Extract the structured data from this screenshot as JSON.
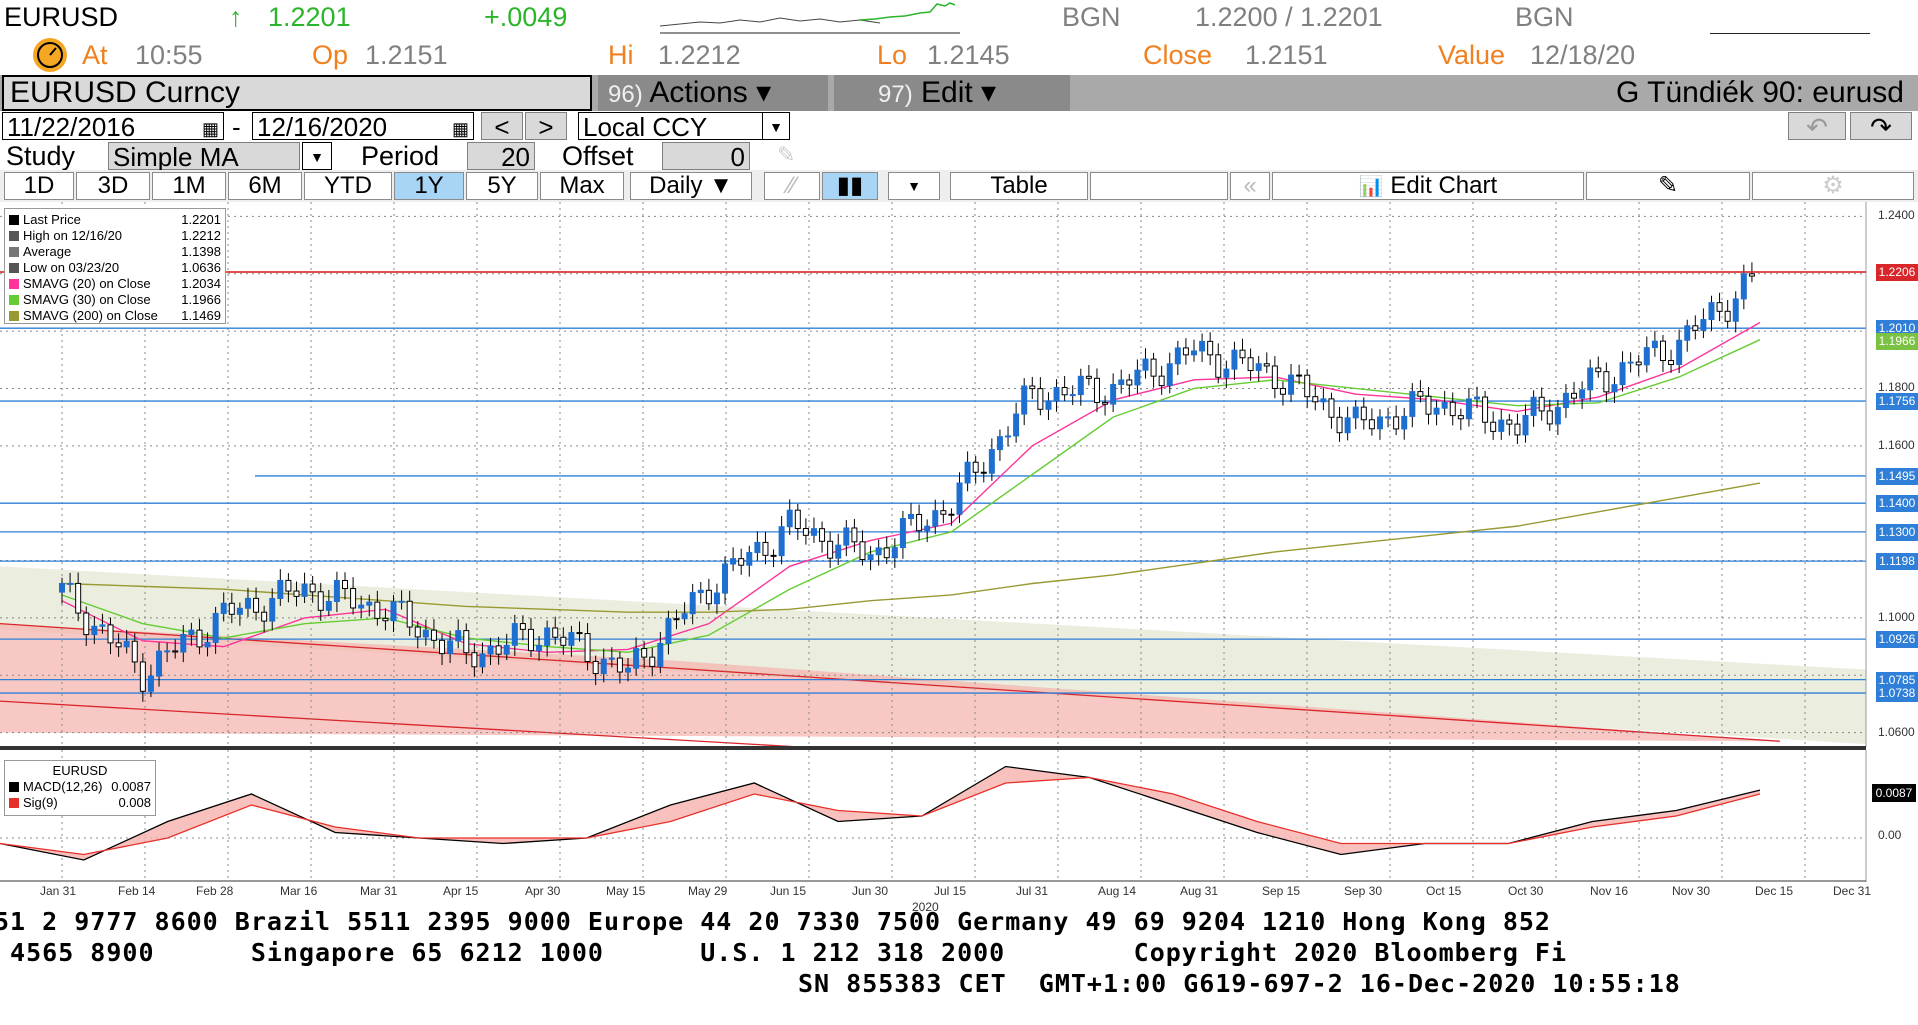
{
  "quote": {
    "ticker": "EURUSD",
    "arrow": "↑",
    "last": "1.2201",
    "change": "+.0049",
    "source1": "BGN",
    "bid_ask": "1.2200 / 1.2201",
    "source2": "BGN",
    "at_label": "At",
    "at_value": "10:55",
    "op_label": "Op",
    "op_value": "1.2151",
    "hi_label": "Hi",
    "hi_value": "1.2212",
    "lo_label": "Lo",
    "lo_value": "1.2145",
    "close_label": "Close",
    "close_value": "1.2151",
    "value_label": "Value",
    "value_value": "12/18/20"
  },
  "titlebar": {
    "security": "EURUSD Curncy",
    "actions_num": "96)",
    "actions_label": "Actions ▾",
    "edit_num": "97)",
    "edit_label": "Edit ▾",
    "chart_name": "G Tündiék 90: eurusd"
  },
  "controls": {
    "start_date": "11/22/2016",
    "dash": "-",
    "end_date": "12/16/2020",
    "prev": "<",
    "next": ">",
    "currency": "Local CCY",
    "study_label": "Study",
    "study_value": "Simple MA",
    "period_label": "Period",
    "period_value": "20",
    "offset_label": "Offset",
    "offset_value": "0"
  },
  "ranges": [
    "1D",
    "3D",
    "1M",
    "6M",
    "YTD",
    "1Y",
    "5Y",
    "Max"
  ],
  "selected_range": "1Y",
  "toolbar": {
    "frequency": "Daily ▼",
    "table": "Table",
    "rewind": "«",
    "edit_chart": "Edit Chart"
  },
  "legend": [
    {
      "label": "Last Price",
      "value": "1.2201",
      "color": "#000000"
    },
    {
      "label": "High on 12/16/20",
      "value": "1.2212",
      "color": "#555555"
    },
    {
      "label": "Average",
      "value": "1.1398",
      "color": "#777777"
    },
    {
      "label": "Low on 03/23/20",
      "value": "1.0636",
      "color": "#555555"
    },
    {
      "label": "SMAVG (20)  on Close",
      "value": "1.2034",
      "color": "#ff3399"
    },
    {
      "label": "SMAVG (30)  on Close",
      "value": "1.1966",
      "color": "#66cc33"
    },
    {
      "label": "SMAVG (200)  on Close",
      "value": "1.1469",
      "color": "#999933"
    }
  ],
  "macd_legend": {
    "title": "EURUSD",
    "rows": [
      {
        "label": "MACD(12,26)",
        "value": "0.0087",
        "color": "#000000"
      },
      {
        "label": "Sig(9)",
        "value": "0.008",
        "color": "#e8302a"
      }
    ]
  },
  "price_axis": {
    "ticks": [
      "1.2400",
      "1.1800",
      "1.1600",
      "1.1000",
      "1.0600"
    ],
    "levels": [
      {
        "label": "1.2206",
        "color": "#d9262b"
      },
      {
        "label": "1.2010",
        "color": "#2f7fd8"
      },
      {
        "label": "1.1966",
        "color": "#7bc142"
      },
      {
        "label": "1.1756",
        "color": "#2f7fd8"
      },
      {
        "label": "1.1495",
        "color": "#2f7fd8"
      },
      {
        "label": "1.1400",
        "color": "#2f7fd8"
      },
      {
        "label": "1.1300",
        "color": "#2f7fd8"
      },
      {
        "label": "1.1198",
        "color": "#2f7fd8"
      },
      {
        "label": "1.0926",
        "color": "#2f7fd8"
      },
      {
        "label": "1.0785",
        "color": "#2f7fd8"
      },
      {
        "label": "1.0738",
        "color": "#2f7fd8"
      }
    ]
  },
  "macd_axis": {
    "ticks": [
      "0.00"
    ],
    "last": "0.0087"
  },
  "x_axis": {
    "labels": [
      "Jan 31",
      "Feb 14",
      "Feb 28",
      "Mar 16",
      "Mar 31",
      "Apr 15",
      "Apr 30",
      "May 15",
      "May 29",
      "Jun 15",
      "Jun 30",
      "Jul 15",
      "Jul 31",
      "Aug 14",
      "Aug 31",
      "Sep 15",
      "Sep 30",
      "Oct 15",
      "Oct 30",
      "Nov 16",
      "Nov 30",
      "Dec 15",
      "Dec 31"
    ],
    "year": "2020"
  },
  "footer": {
    "line1": "51 2 9777 8600 Brazil 5511 2395 9000 Europe 44 20 7330 7500 Germany 49 69 9204 1210 Hong Kong 852",
    "line2": " 4565 8900      Singapore 65 6212 1000      U.S. 1 212 318 2000        Copyright 2020 Bloomberg Fi",
    "line3": "SN 855383 CET  GMT+1:00 G619-697-2 16-Dec-2020 10:55:18"
  },
  "chart_data": {
    "type": "line",
    "title": "EURUSD Curncy",
    "x": [
      "Jan 31",
      "Feb 14",
      "Feb 28",
      "Mar 16",
      "Mar 31",
      "Apr 15",
      "Apr 30",
      "May 15",
      "May 29",
      "Jun 15",
      "Jun 30",
      "Jul 15",
      "Jul 31",
      "Aug 14",
      "Aug 31",
      "Sep 15",
      "Sep 30",
      "Oct 15",
      "Oct 30",
      "Nov 16",
      "Nov 30",
      "Dec 15"
    ],
    "series": [
      {
        "name": "Last Price",
        "values": [
          1.109,
          1.081,
          1.101,
          1.11,
          1.103,
          1.087,
          1.095,
          1.081,
          1.111,
          1.132,
          1.122,
          1.14,
          1.178,
          1.18,
          1.193,
          1.185,
          1.167,
          1.175,
          1.167,
          1.183,
          1.196,
          1.22
        ]
      },
      {
        "name": "SMAVG (20)  on Close",
        "values": [
          1.106,
          1.092,
          1.09,
          1.1,
          1.103,
          1.091,
          1.088,
          1.089,
          1.098,
          1.118,
          1.127,
          1.133,
          1.16,
          1.176,
          1.183,
          1.184,
          1.178,
          1.176,
          1.172,
          1.177,
          1.187,
          1.203
        ]
      },
      {
        "name": "SMAVG (30)  on Close",
        "values": [
          1.108,
          1.098,
          1.093,
          1.098,
          1.1,
          1.093,
          1.09,
          1.088,
          1.094,
          1.11,
          1.123,
          1.13,
          1.15,
          1.17,
          1.18,
          1.183,
          1.18,
          1.177,
          1.174,
          1.175,
          1.184,
          1.197
        ]
      },
      {
        "name": "SMAVG (200)  on Close",
        "values": [
          1.112,
          1.111,
          1.11,
          1.108,
          1.106,
          1.104,
          1.103,
          1.102,
          1.102,
          1.103,
          1.106,
          1.108,
          1.112,
          1.115,
          1.119,
          1.123,
          1.126,
          1.129,
          1.132,
          1.137,
          1.142,
          1.147
        ]
      }
    ],
    "macd": [
      -0.001,
      -0.004,
      0.003,
      0.008,
      0.001,
      0.0,
      -0.001,
      0.0,
      0.006,
      0.01,
      0.003,
      0.004,
      0.013,
      0.011,
      0.006,
      0.001,
      -0.003,
      -0.001,
      -0.001,
      0.003,
      0.005,
      0.0087
    ],
    "signal": [
      -0.001,
      -0.003,
      0.0,
      0.006,
      0.002,
      0.0,
      0.0,
      0.0,
      0.003,
      0.008,
      0.005,
      0.004,
      0.01,
      0.011,
      0.008,
      0.003,
      -0.001,
      -0.001,
      -0.001,
      0.002,
      0.004,
      0.008
    ],
    "ylim": [
      1.055,
      1.245
    ],
    "macd_ylim": [
      -0.008,
      0.016
    ],
    "grid": true,
    "legend_position": "top-left"
  },
  "colors": {
    "price_up": "#1e6fd0",
    "price_down": "#000000",
    "highline": "#d9262b",
    "levelline": "#2f7fd8",
    "sma20": "#ff3399",
    "sma30": "#66cc33",
    "sma200": "#999933",
    "channel_red": "#f4b6b0",
    "channel_grey": "#e9ecdc"
  }
}
